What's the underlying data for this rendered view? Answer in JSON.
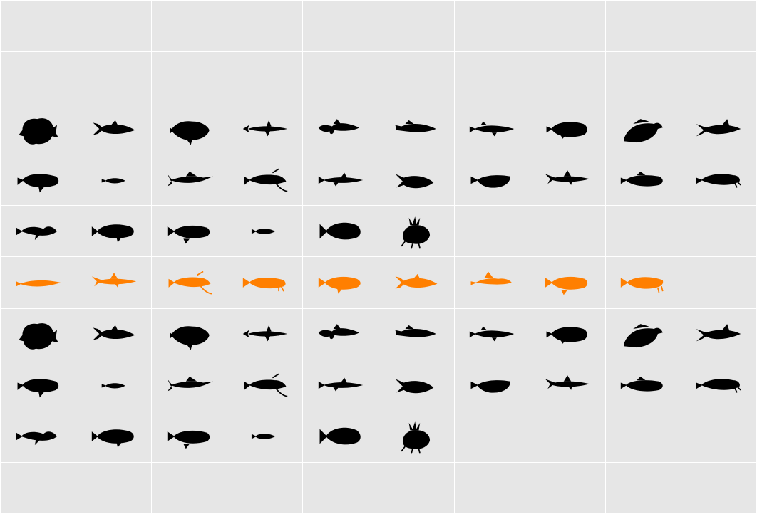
{
  "grid": {
    "columns": 10,
    "rows": 10,
    "background_color": "#e6e6e6",
    "line_color": "#ffffff",
    "glyph_color_default": "#000000",
    "glyph_color_highlight": "#ff7f00",
    "rows_data": [
      {
        "color": "none",
        "glyphs": []
      },
      {
        "color": "none",
        "glyphs": []
      },
      {
        "color": "black",
        "glyphs": [
          "frogfish-icon",
          "tuna-icon",
          "triggerfish-icon",
          "needlefish-icon",
          "sculpin-icon",
          "flathead-icon",
          "pike-icon",
          "pufferfish-icon",
          "blenny-icon",
          "mackerel-icon"
        ]
      },
      {
        "color": "black",
        "glyphs": [
          "grouper-icon",
          "small-fish-icon",
          "marlin-icon",
          "catfish-icon",
          "dogfish-icon",
          "sunfish-icon",
          "flounder-icon",
          "shark-icon",
          "goby-icon",
          "wrasse-icon"
        ]
      },
      {
        "color": "black",
        "glyphs": [
          "lumpfish-icon",
          "bass-icon",
          "perch-icon",
          "minnow-icon",
          "angelfish-icon",
          "lionfish-icon"
        ]
      },
      {
        "color": "orange",
        "glyphs": [
          "eel-icon",
          "shark-icon",
          "catfish-icon",
          "carp-icon",
          "piranha-icon",
          "tuna-icon",
          "dragonet-icon",
          "perch-icon",
          "pollock-icon"
        ]
      },
      {
        "color": "black",
        "glyphs": [
          "frogfish-icon",
          "tuna-icon",
          "triggerfish-icon",
          "needlefish-icon",
          "sculpin-icon",
          "flathead-icon",
          "pike-icon",
          "pufferfish-icon",
          "blenny-icon",
          "mackerel-icon"
        ]
      },
      {
        "color": "black",
        "glyphs": [
          "grouper-icon",
          "small-fish-icon",
          "marlin-icon",
          "catfish-icon",
          "dogfish-icon",
          "sunfish-icon",
          "flounder-icon",
          "shark-icon",
          "goby-icon",
          "wrasse-icon"
        ]
      },
      {
        "color": "black",
        "glyphs": [
          "lumpfish-icon",
          "bass-icon",
          "perch-icon",
          "minnow-icon",
          "angelfish-icon",
          "lionfish-icon"
        ]
      },
      {
        "color": "none",
        "glyphs": []
      }
    ]
  }
}
